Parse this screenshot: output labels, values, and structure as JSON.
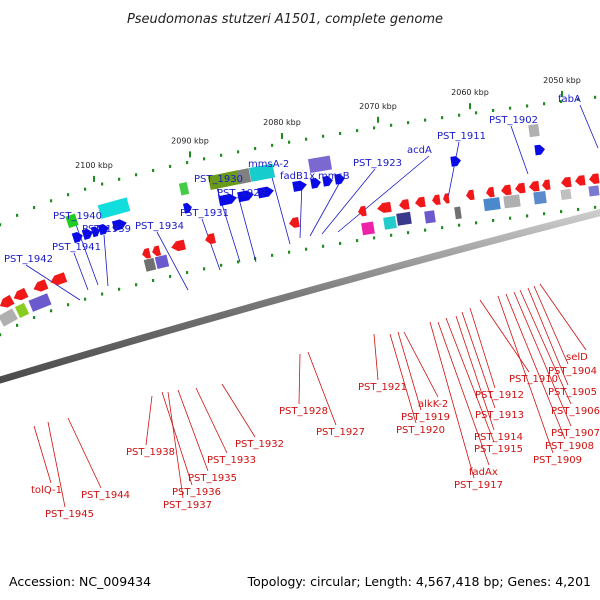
{
  "title": "Pseudomonas stutzeri A1501, complete genome",
  "footer": {
    "accession": "Accession: NC_009434",
    "topology": "Topology: circular; Length: 4,567,418 bp; Genes: 4,201"
  },
  "colors": {
    "forward_label": "#1a1ac8",
    "reverse_label": "#d01010",
    "forward_gene": "#0a0ae6",
    "reverse_gene": "#f01818",
    "backbone": "#808080",
    "tick": "#1e8c1e"
  },
  "scale_marks": [
    {
      "label": "2100 kbp"
    },
    {
      "label": "2090 kbp"
    },
    {
      "label": "2080 kbp"
    },
    {
      "label": "2070 kbp"
    },
    {
      "label": "2060 kbp"
    },
    {
      "label": "2050 kbp"
    }
  ],
  "forward_labels": [
    {
      "text": "PST_1942"
    },
    {
      "text": "PST_1941"
    },
    {
      "text": "PST_1940"
    },
    {
      "text": "PST_1939"
    },
    {
      "text": "PST_1934"
    },
    {
      "text": "PST_1931"
    },
    {
      "text": "PST_1930"
    },
    {
      "text": "PST_1929"
    },
    {
      "text": "mmsA-2"
    },
    {
      "text": "fadB1x"
    },
    {
      "text": "mmsB"
    },
    {
      "text": "PST_1923"
    },
    {
      "text": "acdA"
    },
    {
      "text": "PST_1911"
    },
    {
      "text": "PST_1902"
    },
    {
      "text": "fabA"
    }
  ],
  "reverse_labels": [
    {
      "text": "tolQ-1"
    },
    {
      "text": "PST_1945"
    },
    {
      "text": "PST_1944"
    },
    {
      "text": "PST_1938"
    },
    {
      "text": "PST_1937"
    },
    {
      "text": "PST_1936"
    },
    {
      "text": "PST_1935"
    },
    {
      "text": "PST_1933"
    },
    {
      "text": "PST_1932"
    },
    {
      "text": "PST_1928"
    },
    {
      "text": "PST_1927"
    },
    {
      "text": "PST_1921"
    },
    {
      "text": "alkK-2"
    },
    {
      "text": "PST_1919"
    },
    {
      "text": "PST_1920"
    },
    {
      "text": "fadAx"
    },
    {
      "text": "PST_1917"
    },
    {
      "text": "PST_1915"
    },
    {
      "text": "PST_1914"
    },
    {
      "text": "PST_1913"
    },
    {
      "text": "PST_1912"
    },
    {
      "text": "PST_1910"
    },
    {
      "text": "selD"
    },
    {
      "text": "PST_1904"
    },
    {
      "text": "PST_1905"
    },
    {
      "text": "PST_1906"
    },
    {
      "text": "PST_1907"
    },
    {
      "text": "PST_1908"
    },
    {
      "text": "PST_1909"
    }
  ]
}
